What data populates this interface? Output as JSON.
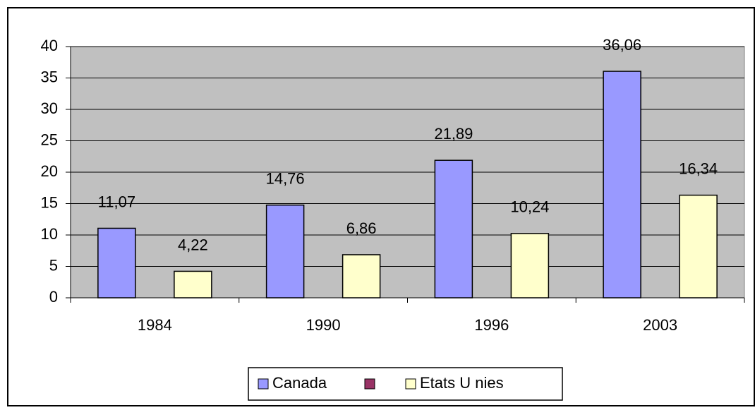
{
  "chart_data": {
    "type": "bar",
    "categories": [
      "1984",
      "1990",
      "1996",
      "2003"
    ],
    "series": [
      {
        "name": "Canada",
        "color": "#9999ff",
        "values": [
          11.07,
          14.76,
          21.89,
          36.06
        ],
        "value_labels": [
          "11,07",
          "14,76",
          "21,89",
          "36,06"
        ]
      },
      {
        "name": "Etats U nies",
        "color": "#ffffcc",
        "values": [
          4.22,
          6.86,
          10.24,
          16.34
        ],
        "value_labels": [
          "4,22",
          "6,86",
          "10,24",
          "16,34"
        ]
      }
    ],
    "ylim": [
      0,
      40
    ],
    "yticks": [
      0,
      5,
      10,
      15,
      20,
      25,
      30,
      35,
      40
    ],
    "grid": true,
    "legend": "bottom"
  }
}
